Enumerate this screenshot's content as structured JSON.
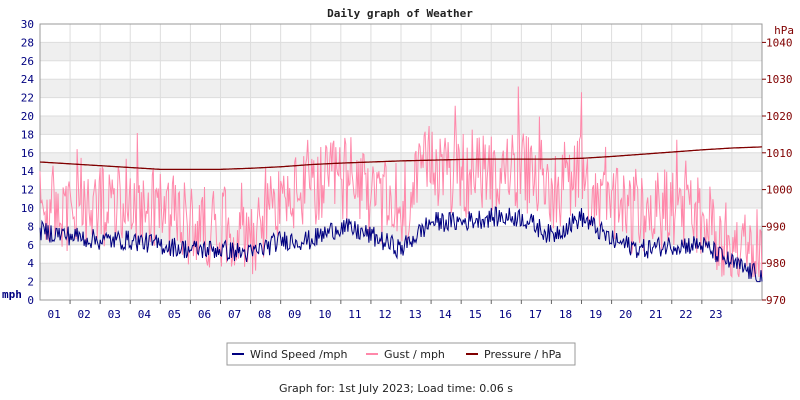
{
  "chart_data": {
    "type": "line",
    "title": "Daily graph of Weather",
    "x_categories": [
      "01",
      "02",
      "03",
      "04",
      "05",
      "06",
      "07",
      "08",
      "09",
      "10",
      "11",
      "12",
      "13",
      "14",
      "15",
      "16",
      "17",
      "18",
      "19",
      "20",
      "21",
      "22",
      "23"
    ],
    "xlim": [
      0,
      24
    ],
    "y_left": {
      "label": "mph",
      "range": [
        0,
        30
      ],
      "ticks": [
        0,
        2,
        4,
        6,
        8,
        10,
        12,
        14,
        16,
        18,
        20,
        22,
        24,
        26,
        28,
        30
      ]
    },
    "y_right": {
      "label": "hPa",
      "range": [
        970,
        1045
      ],
      "ticks": [
        970,
        980,
        990,
        1000,
        1010,
        1020,
        1030,
        1040
      ]
    },
    "grid": true,
    "legend_position": "bottom",
    "series": [
      {
        "name": "Wind Speed /mph",
        "axis": "left",
        "color": "#000080",
        "x": [
          0,
          1,
          2,
          3,
          4,
          5,
          6,
          7,
          8,
          9,
          10,
          11,
          12,
          13,
          14,
          15,
          16,
          17,
          18,
          19,
          20,
          21,
          22,
          23,
          24
        ],
        "values": [
          7.5,
          7.0,
          6.5,
          6.5,
          6.0,
          5.5,
          5.5,
          5.0,
          6.5,
          6.5,
          8.0,
          7.0,
          5.5,
          8.5,
          8.5,
          9.0,
          9.0,
          7.0,
          9.0,
          6.5,
          5.5,
          6.0,
          6.0,
          4.0,
          2.5
        ]
      },
      {
        "name": "Gust / mph",
        "axis": "left",
        "color": "#ff88aa",
        "x": [
          0,
          1,
          2,
          3,
          4,
          5,
          6,
          7,
          8,
          9,
          10,
          11,
          12,
          13,
          14,
          15,
          16,
          17,
          18,
          19,
          20,
          21,
          22,
          23,
          24
        ],
        "values": [
          10,
          9,
          10,
          11,
          10,
          8,
          8,
          7,
          11,
          12,
          13,
          11,
          9,
          15,
          13,
          14,
          14,
          12,
          13,
          10,
          9,
          10,
          9,
          6,
          4
        ]
      },
      {
        "name": "Pressure / hPa",
        "axis": "right",
        "color": "#800000",
        "x": [
          0,
          1,
          2,
          3,
          4,
          5,
          6,
          7,
          8,
          9,
          10,
          11,
          12,
          13,
          14,
          15,
          16,
          17,
          18,
          19,
          20,
          21,
          22,
          23,
          24
        ],
        "values": [
          1007.5,
          1007.0,
          1006.5,
          1006.0,
          1005.5,
          1005.5,
          1005.5,
          1005.8,
          1006.2,
          1006.8,
          1007.2,
          1007.5,
          1007.8,
          1008.0,
          1008.2,
          1008.3,
          1008.3,
          1008.3,
          1008.5,
          1009.0,
          1009.6,
          1010.2,
          1010.8,
          1011.3,
          1011.6
        ]
      }
    ]
  },
  "footer": {
    "text": "Graph for: 1st July 2023; Load time: 0.06 s"
  }
}
